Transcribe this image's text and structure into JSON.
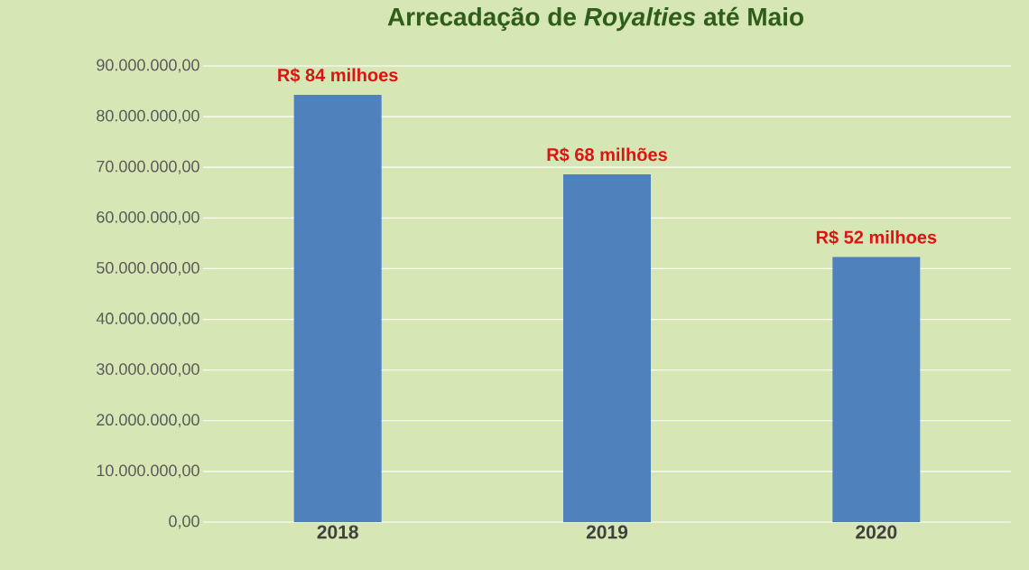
{
  "chart_data": {
    "type": "bar",
    "title": "Arrecadação de *Royalties* até Maio",
    "categories": [
      "2018",
      "2019",
      "2020"
    ],
    "values": [
      84300000,
      68600000,
      52300000
    ],
    "value_labels": [
      "R$ 84 milhoes",
      "R$ 68 milhões",
      "R$ 52 milhoes"
    ],
    "color": "#4f81bd",
    "ylim": [
      0,
      90000000
    ],
    "yticks": [
      {
        "value": 0,
        "label": "0,00"
      },
      {
        "value": 10000000,
        "label": "10.000.000,00"
      },
      {
        "value": 20000000,
        "label": "20.000.000,00"
      },
      {
        "value": 30000000,
        "label": "30.000.000,00"
      },
      {
        "value": 40000000,
        "label": "40.000.000,00"
      },
      {
        "value": 50000000,
        "label": "50.000.000,00"
      },
      {
        "value": 60000000,
        "label": "60.000.000,00"
      },
      {
        "value": 70000000,
        "label": "70.000.000,00"
      },
      {
        "value": 80000000,
        "label": "80.000.000,00"
      },
      {
        "value": 90000000,
        "label": "90.000.000,00"
      }
    ],
    "grid": "y"
  }
}
